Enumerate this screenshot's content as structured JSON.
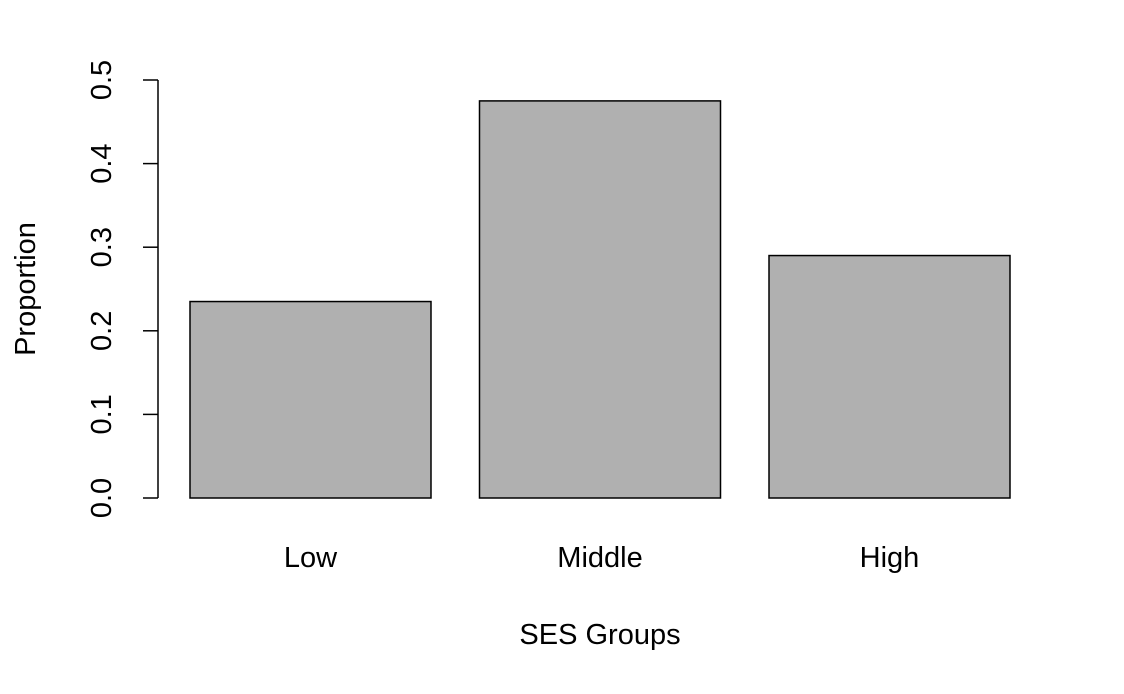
{
  "chart_data": {
    "type": "bar",
    "categories": [
      "Low",
      "Middle",
      "High"
    ],
    "values": [
      0.235,
      0.475,
      0.29
    ],
    "xlabel": "SES Groups",
    "ylabel": "Proportion",
    "ylim": [
      0,
      0.5
    ],
    "yticks": [
      "0.0",
      "0.1",
      "0.2",
      "0.3",
      "0.4",
      "0.5"
    ],
    "grid": false,
    "colors": {
      "bar_fill": "#b0b0b0",
      "bar_stroke": "#000000"
    }
  }
}
